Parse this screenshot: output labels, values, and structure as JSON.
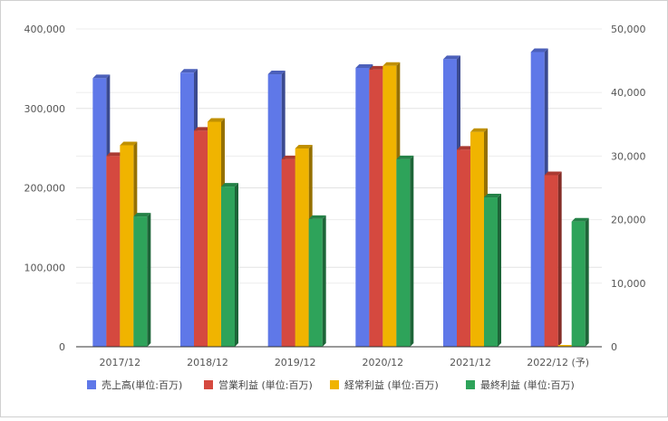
{
  "chart_data": {
    "type": "bar",
    "categories": [
      "2017/12",
      "2018/12",
      "2019/12",
      "2020/12",
      "2021/12",
      "2022/12 (予)"
    ],
    "series": [
      {
        "name": "売上高(単位:百万)",
        "axis": "left",
        "color": "#5f78e8",
        "values": [
          338000,
          345000,
          343000,
          351000,
          362000,
          371000
        ]
      },
      {
        "name": "営業利益 (単位:百万)",
        "axis": "right",
        "color": "#d5493f",
        "values": [
          30000,
          34000,
          29500,
          43600,
          31000,
          27000
        ]
      },
      {
        "name": "経常利益 (単位:百万)",
        "axis": "right",
        "color": "#f0b400",
        "values": [
          31700,
          35400,
          31200,
          44200,
          33800,
          0
        ]
      },
      {
        "name": "最終利益 (単位:百万)",
        "axis": "right",
        "color": "#2ea35a",
        "values": [
          20500,
          25200,
          20100,
          29500,
          23500,
          19700
        ]
      }
    ],
    "y_left": {
      "lim": [
        0,
        400000
      ],
      "ticks": [
        0,
        100000,
        200000,
        300000,
        400000
      ],
      "tick_labels": [
        "0",
        "100,000",
        "200,000",
        "300,000",
        "400,000"
      ]
    },
    "y_right": {
      "lim": [
        0,
        50000
      ],
      "ticks": [
        0,
        10000,
        20000,
        30000,
        40000,
        50000
      ],
      "tick_labels": [
        "0",
        "10,000",
        "20,000",
        "30,000",
        "40,000",
        "50,000"
      ]
    },
    "grid": true,
    "legend_position": "bottom",
    "style": "3d-bars"
  }
}
